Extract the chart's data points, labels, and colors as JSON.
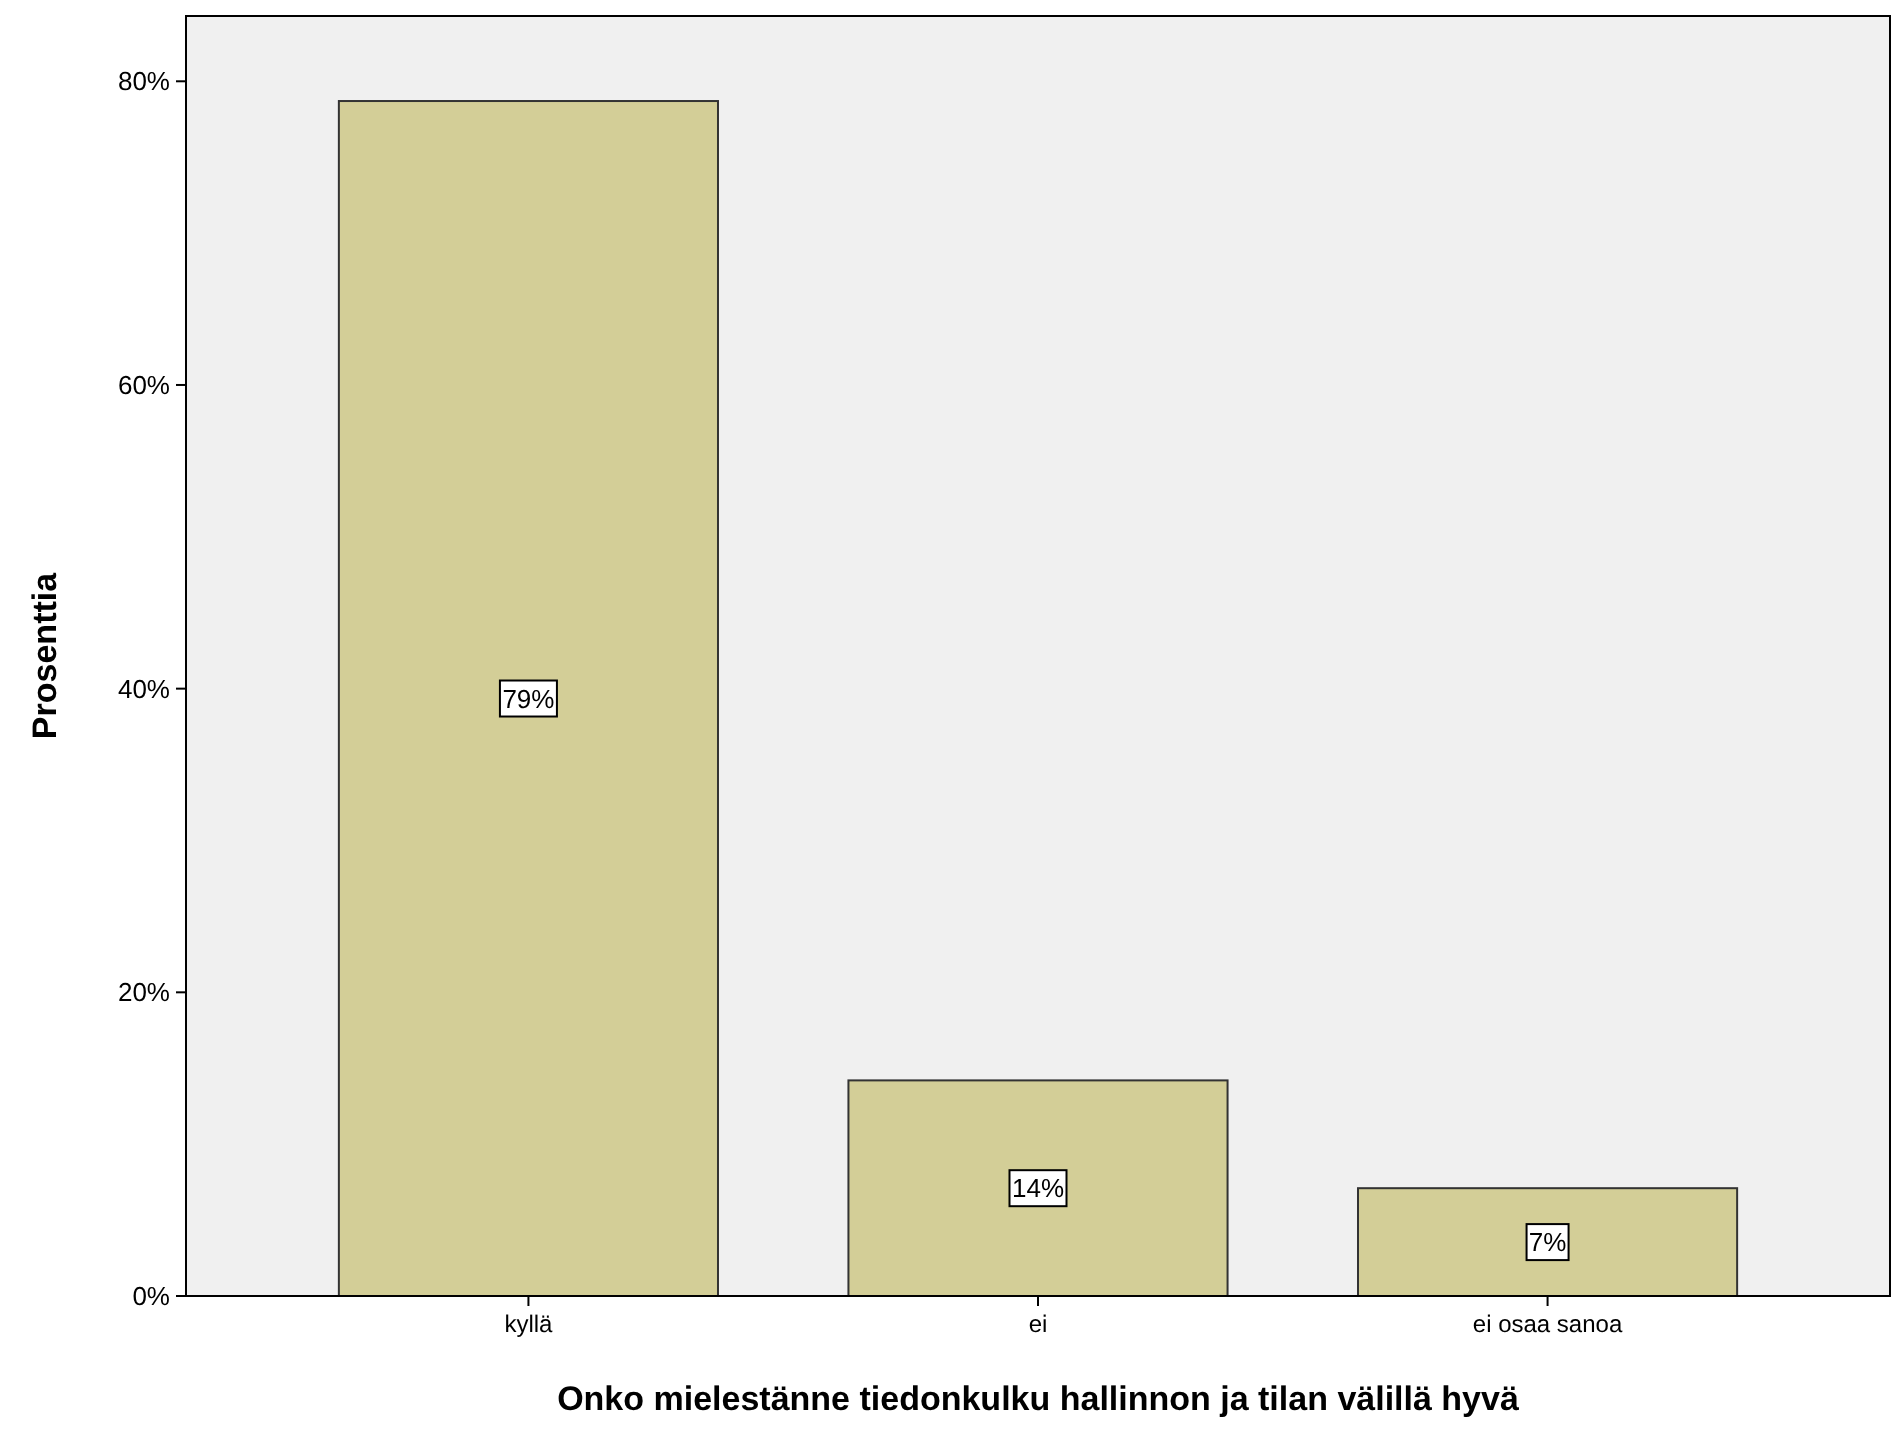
{
  "chart_data": {
    "type": "bar",
    "xlabel": "Onko mielestänne tiedonkulku hallinnon ja tilan välillä hyvä",
    "ylabel": "Prosenttia",
    "categories": [
      "kyllä",
      "ei",
      "ei osaa sanoa"
    ],
    "values": [
      78.7,
      14.2,
      7.1
    ],
    "value_labels": [
      "79%",
      "14%",
      "7%"
    ],
    "color": "#d3ce97",
    "ylim": [
      0,
      84.3
    ],
    "yticks": [
      {
        "value": 0,
        "label": "0%"
      },
      {
        "value": 20,
        "label": "20%"
      },
      {
        "value": 40,
        "label": "40%"
      },
      {
        "value": 60,
        "label": "60%"
      },
      {
        "value": 80,
        "label": "80%"
      }
    ],
    "grid": false
  }
}
